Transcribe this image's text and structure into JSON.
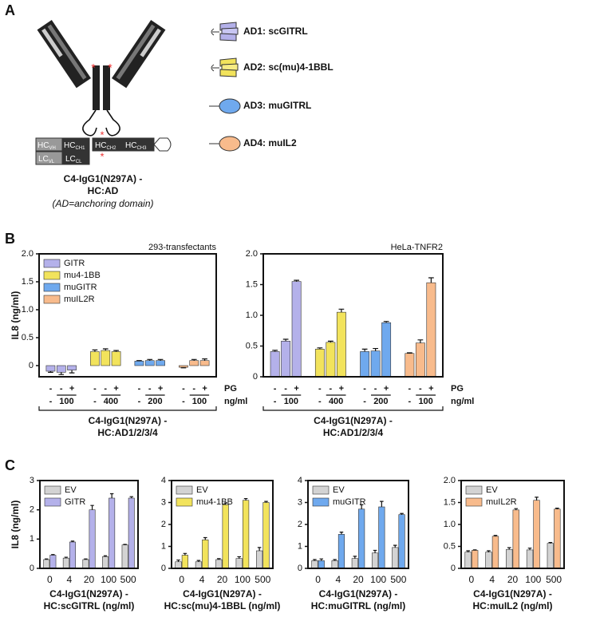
{
  "panel_labels": [
    "A",
    "B",
    "C"
  ],
  "diagram": {
    "domains": [
      {
        "main": "HC",
        "sub": "VH"
      },
      {
        "main": "HC",
        "sub": "CH1"
      },
      {
        "main": "HC",
        "sub": "CH2"
      },
      {
        "main": "HC",
        "sub": "CH3"
      },
      {
        "main": "LC",
        "sub": "VL"
      },
      {
        "main": "LC",
        "sub": "CL"
      }
    ],
    "caption": [
      "C4-IgG1(N297A) -",
      "HC:AD",
      "(AD=anchoring domain)"
    ],
    "legend": [
      "AD1: scGITRL",
      "AD2: sc(mu)4-1BBL",
      "AD3: muGITRL",
      "AD4: muIL2"
    ]
  },
  "chart_data": [
    {
      "type": "bar",
      "title": "293-transfectants",
      "ylabel": "IL8 (ng/ml)",
      "ylim": [
        -0.2,
        2.0
      ],
      "yticks": [
        0,
        0.5,
        {
          "value": 1,
          "label": "1.0"
        },
        1.5,
        {
          "value": 2,
          "label": "2.0"
        }
      ],
      "legend": "upper left",
      "pg_labels": [
        "-",
        "-",
        "+"
      ],
      "pg_name": "PG",
      "dose_none": "-",
      "dose_unit": "ng/ml",
      "xlabel": [
        "C4-IgG1(N297A) -",
        "HC:AD1/2/3/4"
      ],
      "series": [
        {
          "name": "GITR",
          "color": "#b4b1ea",
          "values": [
            -0.1,
            -0.12,
            -0.08
          ],
          "errors": [
            0.02,
            0.04,
            0.05
          ],
          "dose": 100
        },
        {
          "name": "mu4-1BB",
          "color": "#f2e35c",
          "values": [
            0.25,
            0.27,
            0.25
          ],
          "errors": [
            0.03,
            0.03,
            0.02
          ],
          "dose": 400
        },
        {
          "name": "muGITR",
          "color": "#6fa9ee",
          "values": [
            0.08,
            0.09,
            0.09
          ],
          "errors": [
            0.01,
            0.02,
            0.02
          ],
          "dose": 200
        },
        {
          "name": "muIL2R",
          "color": "#f8bb8c",
          "values": [
            -0.03,
            0.09,
            0.09
          ],
          "errors": [
            0.01,
            0.02,
            0.03
          ],
          "dose": 100
        }
      ]
    },
    {
      "type": "bar",
      "title": "HeLa-TNFR2",
      "ylim": [
        0,
        2.0
      ],
      "yticks": [
        0,
        0.5,
        {
          "value": 1,
          "label": "1.0"
        },
        1.5,
        {
          "value": 2,
          "label": "2.0"
        }
      ],
      "pg_labels": [
        "-",
        "-",
        "+"
      ],
      "pg_name": "PG",
      "dose_none": "-",
      "dose_unit": "ng/ml",
      "xlabel": [
        "C4-IgG1(N297A) -",
        "HC:AD1/2/3/4"
      ],
      "series": [
        {
          "color": "#b4b1ea",
          "values": [
            0.41,
            0.58,
            1.55
          ],
          "errors": [
            0.02,
            0.03,
            0.02
          ],
          "dose": 100
        },
        {
          "color": "#f2e35c",
          "values": [
            0.45,
            0.56,
            1.05
          ],
          "errors": [
            0.02,
            0.02,
            0.05
          ],
          "dose": 400
        },
        {
          "color": "#6fa9ee",
          "values": [
            0.41,
            0.42,
            0.88
          ],
          "errors": [
            0.04,
            0.04,
            0.02
          ],
          "dose": 200
        },
        {
          "color": "#f8bb8c",
          "values": [
            0.38,
            0.55,
            1.53
          ],
          "errors": [
            0.01,
            0.05,
            0.08
          ],
          "dose": 100
        }
      ]
    },
    {
      "type": "bar",
      "ylabel": "IL8 (ng/ml)",
      "ylim": [
        0,
        3
      ],
      "yticks": [
        0,
        1,
        2,
        3
      ],
      "legend": "upper left",
      "categories": [
        0,
        4,
        20,
        100,
        500
      ],
      "xlabel": [
        "C4-IgG1(N297A) -",
        "HC:scGITRL (ng/ml)"
      ],
      "series": [
        {
          "name": "EV",
          "color": "#d3d3d3",
          "values": [
            0.3,
            0.35,
            0.3,
            0.4,
            0.8
          ],
          "errors": [
            0.02,
            0.03,
            0.02,
            0.03,
            0.02
          ]
        },
        {
          "name": "GITR",
          "color": "#b4b1ea",
          "values": [
            0.45,
            0.9,
            2.0,
            2.4,
            2.4
          ],
          "errors": [
            0.02,
            0.03,
            0.15,
            0.15,
            0.05
          ]
        }
      ]
    },
    {
      "type": "bar",
      "ylim": [
        0,
        4
      ],
      "yticks": [
        0,
        1,
        2,
        3,
        4
      ],
      "legend": "upper left",
      "categories": [
        0,
        4,
        20,
        100,
        500
      ],
      "xlabel": [
        "C4-IgG1(N297A) -",
        "HC:sc(mu)4-1BBL (ng/ml)"
      ],
      "series": [
        {
          "name": "EV",
          "color": "#d3d3d3",
          "values": [
            0.3,
            0.3,
            0.4,
            0.45,
            0.8
          ],
          "errors": [
            0.08,
            0.06,
            0.04,
            0.08,
            0.15
          ]
        },
        {
          "name": "mu4-1BB",
          "color": "#f2e35c",
          "values": [
            0.6,
            1.3,
            2.9,
            3.1,
            3.0
          ],
          "errors": [
            0.08,
            0.1,
            0.08,
            0.08,
            0.05
          ]
        }
      ]
    },
    {
      "type": "bar",
      "ylim": [
        0,
        4
      ],
      "yticks": [
        0,
        1,
        2,
        3,
        4
      ],
      "legend": "upper left",
      "categories": [
        0,
        4,
        20,
        100,
        500
      ],
      "xlabel": [
        "C4-IgG1(N297A) -",
        "HC:muGITRL (ng/ml)"
      ],
      "series": [
        {
          "name": "EV",
          "color": "#d3d3d3",
          "values": [
            0.35,
            0.35,
            0.45,
            0.7,
            0.95
          ],
          "errors": [
            0.05,
            0.05,
            0.1,
            0.12,
            0.1
          ]
        },
        {
          "name": "muGITR",
          "color": "#6fa9ee",
          "values": [
            0.35,
            1.55,
            2.7,
            2.8,
            2.45
          ],
          "errors": [
            0.08,
            0.1,
            0.2,
            0.25,
            0.05
          ]
        }
      ]
    },
    {
      "type": "bar",
      "ylim": [
        0,
        2.0
      ],
      "yticks": [
        0,
        0.5,
        {
          "value": 1,
          "label": "1.0"
        },
        1.5,
        {
          "value": 2,
          "label": "2.0"
        }
      ],
      "legend": "upper left",
      "categories": [
        0,
        4,
        20,
        100,
        500
      ],
      "xlabel": [
        "C4-IgG1(N297A) -",
        "HC:muIL2 (ng/ml)"
      ],
      "series": [
        {
          "name": "EV",
          "color": "#d3d3d3",
          "values": [
            0.37,
            0.37,
            0.43,
            0.42,
            0.57
          ],
          "errors": [
            0.03,
            0.03,
            0.04,
            0.04,
            0.02
          ]
        },
        {
          "name": "muIL2R",
          "color": "#f8bb8c",
          "values": [
            0.41,
            0.73,
            1.33,
            1.55,
            1.35
          ],
          "errors": [
            0.01,
            0.02,
            0.03,
            0.07,
            0.02
          ]
        }
      ]
    }
  ]
}
